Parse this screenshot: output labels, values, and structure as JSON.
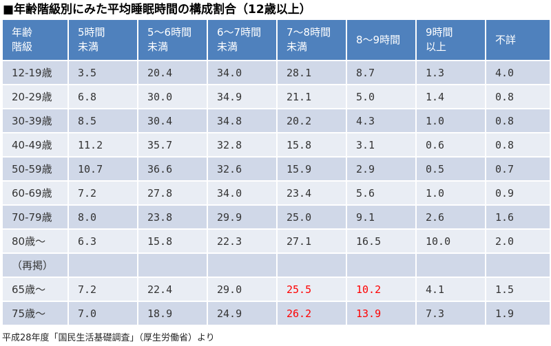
{
  "title": "■年齢階級別にみた平均睡眠時間の構成割合（12歳以上）",
  "headers": [
    [
      "年齢",
      "階級"
    ],
    [
      "5時間",
      "未満"
    ],
    [
      "5～6時間",
      "未満"
    ],
    [
      "6～7時間",
      "未満"
    ],
    [
      "7～8時間",
      "未満"
    ],
    [
      "8～9時間",
      ""
    ],
    [
      "9時間",
      "以上"
    ],
    [
      "不詳",
      ""
    ]
  ],
  "rows": [
    {
      "label": "12-19歳",
      "values": [
        "3.5",
        "20.4",
        "34.0",
        "28.1",
        "8.7",
        "1.3",
        "4.0"
      ]
    },
    {
      "label": "20-29歳",
      "values": [
        "6.8",
        "30.0",
        "34.9",
        "21.1",
        "5.0",
        "1.4",
        "0.8"
      ]
    },
    {
      "label": "30-39歳",
      "values": [
        "8.5",
        "30.4",
        "34.8",
        "20.2",
        "4.3",
        "1.0",
        "0.8"
      ]
    },
    {
      "label": "40-49歳",
      "values": [
        "11.2",
        "35.7",
        "32.8",
        "15.8",
        "3.1",
        "0.6",
        "0.8"
      ]
    },
    {
      "label": "50-59歳",
      "values": [
        "10.7",
        "36.6",
        "32.6",
        "15.9",
        "2.9",
        "0.5",
        "0.7"
      ]
    },
    {
      "label": "60-69歳",
      "values": [
        "7.2",
        "27.8",
        "34.0",
        "23.4",
        "5.6",
        "1.0",
        "0.9"
      ]
    },
    {
      "label": "70-79歳",
      "values": [
        "8.0",
        "23.8",
        "29.9",
        "25.0",
        "9.1",
        "2.6",
        "1.6"
      ]
    },
    {
      "label": "80歳～",
      "values": [
        "6.3",
        "15.8",
        "22.3",
        "27.1",
        "16.5",
        "10.0",
        "2.0"
      ]
    },
    {
      "label": "（再掲）",
      "values": [
        "",
        "",
        "",
        "",
        "",
        "",
        ""
      ]
    },
    {
      "label": "65歳～",
      "values": [
        "7.2",
        "22.4",
        "29.0",
        "25.5",
        "10.2",
        "4.1",
        "1.5"
      ]
    },
    {
      "label": "75歳～",
      "values": [
        "7.0",
        "18.9",
        "24.9",
        "26.2",
        "13.9",
        "7.3",
        "1.9"
      ]
    }
  ],
  "highlight_color": "#ff0000",
  "highlighted_cells": [
    [
      9,
      3
    ],
    [
      9,
      4
    ],
    [
      10,
      3
    ],
    [
      10,
      4
    ]
  ],
  "colors": {
    "header_bg": "#4f81bd",
    "row_odd_bg": "#d0d8e8",
    "row_even_bg": "#e9edf4"
  },
  "footnote": "平成28年度「国民生活基礎調査」（厚生労働省）より",
  "chart_data": {
    "type": "table",
    "title": "■年齢階級別にみた平均睡眠時間の構成割合（12歳以上）",
    "columns": [
      "年齢階級",
      "5時間未満",
      "5～6時間未満",
      "6～7時間未満",
      "7～8時間未満",
      "8～9時間",
      "9時間以上",
      "不詳"
    ],
    "rows": [
      [
        "12-19歳",
        3.5,
        20.4,
        34.0,
        28.1,
        8.7,
        1.3,
        4.0
      ],
      [
        "20-29歳",
        6.8,
        30.0,
        34.9,
        21.1,
        5.0,
        1.4,
        0.8
      ],
      [
        "30-39歳",
        8.5,
        30.4,
        34.8,
        20.2,
        4.3,
        1.0,
        0.8
      ],
      [
        "40-49歳",
        11.2,
        35.7,
        32.8,
        15.8,
        3.1,
        0.6,
        0.8
      ],
      [
        "50-59歳",
        10.7,
        36.6,
        32.6,
        15.9,
        2.9,
        0.5,
        0.7
      ],
      [
        "60-69歳",
        7.2,
        27.8,
        34.0,
        23.4,
        5.6,
        1.0,
        0.9
      ],
      [
        "70-79歳",
        8.0,
        23.8,
        29.9,
        25.0,
        9.1,
        2.6,
        1.6
      ],
      [
        "80歳～",
        6.3,
        15.8,
        22.3,
        27.1,
        16.5,
        10.0,
        2.0
      ],
      [
        "（再掲）",
        null,
        null,
        null,
        null,
        null,
        null,
        null
      ],
      [
        "65歳～",
        7.2,
        22.4,
        29.0,
        25.5,
        10.2,
        4.1,
        1.5
      ],
      [
        "75歳～",
        7.0,
        18.9,
        24.9,
        26.2,
        13.9,
        7.3,
        1.9
      ]
    ]
  }
}
